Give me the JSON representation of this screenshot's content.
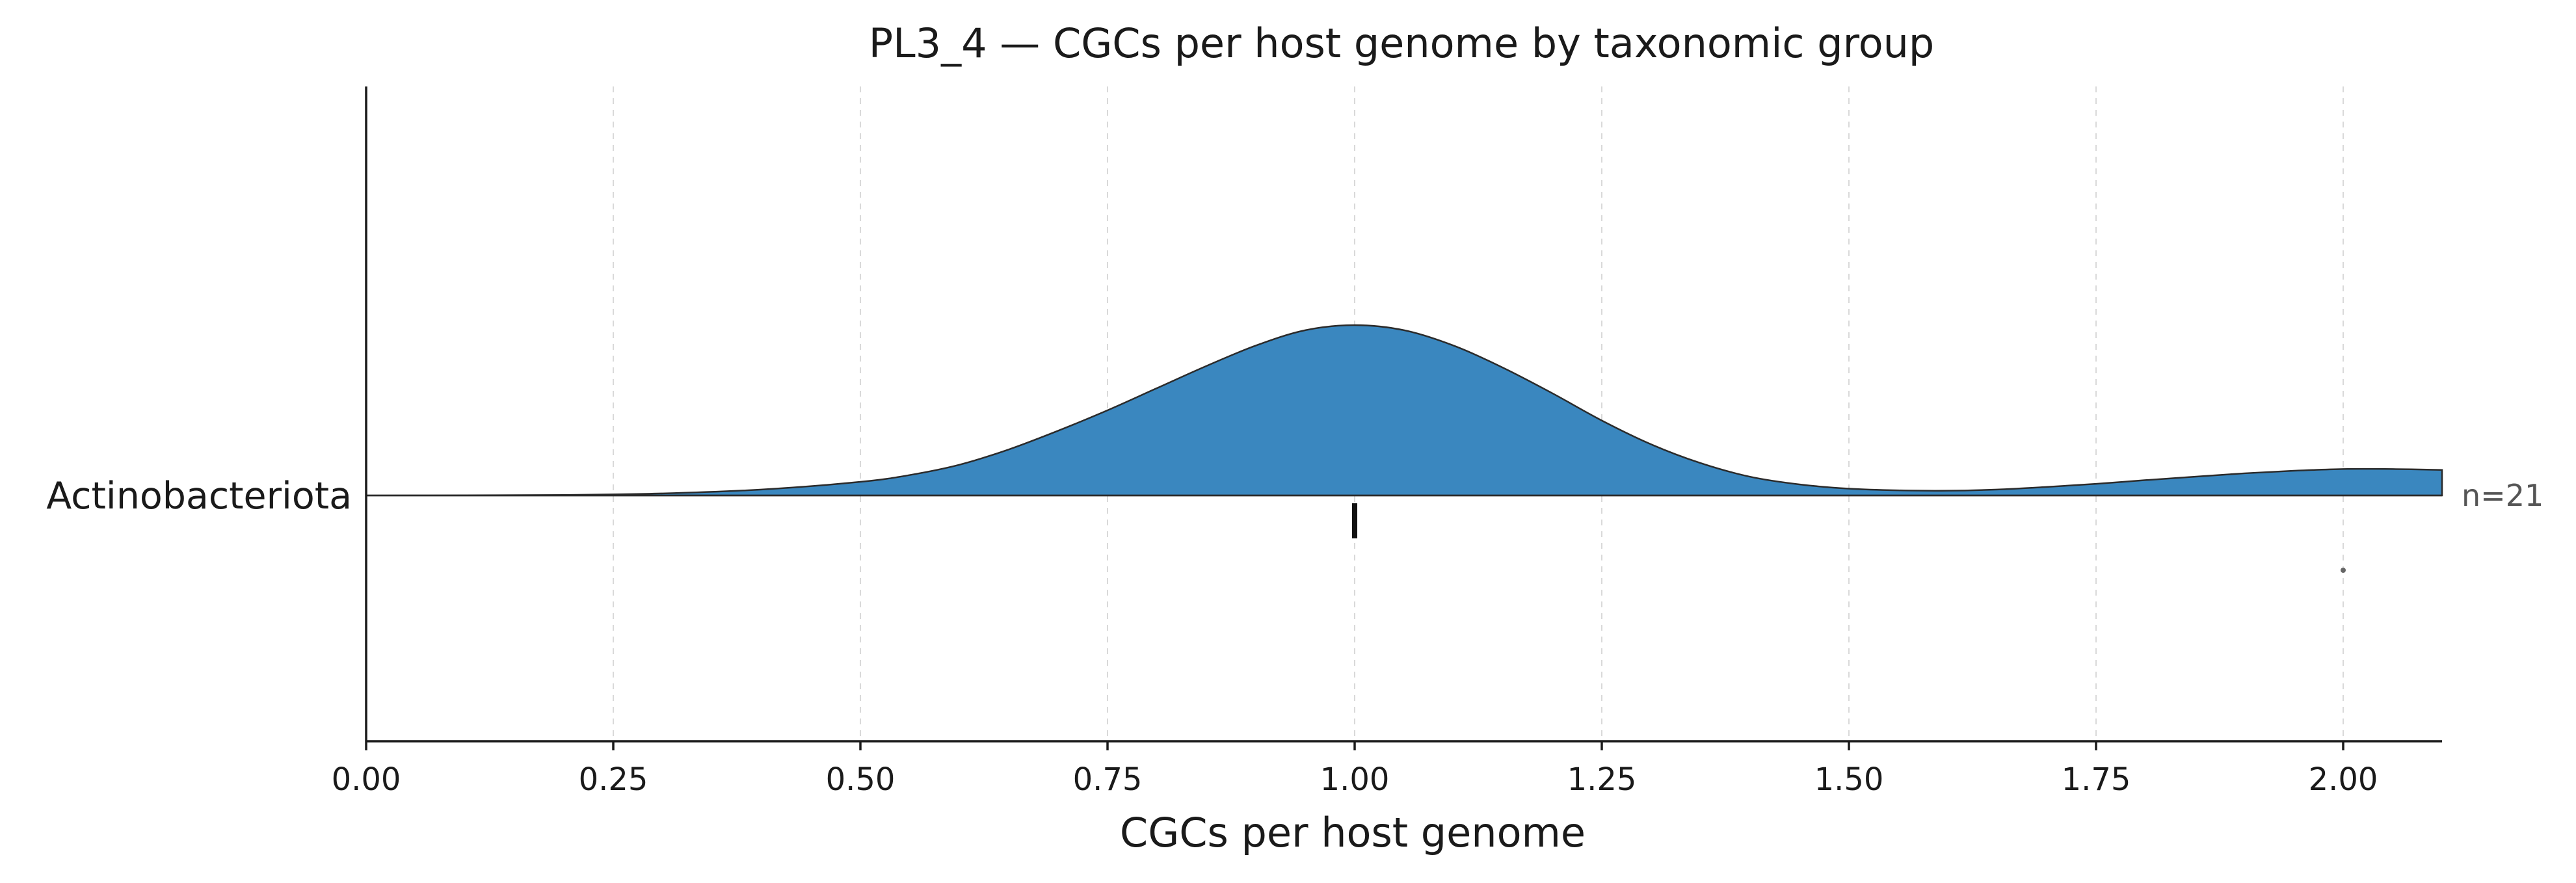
{
  "chart_data": {
    "type": "ridgeline",
    "title": "PL3_4 — CGCs per host genome by taxonomic group",
    "xlabel": "CGCs per host genome",
    "ylabel": "",
    "xlim": [
      0,
      2.1
    ],
    "xticks": [
      0,
      0.25,
      0.5,
      0.75,
      1.0,
      1.25,
      1.5,
      1.75,
      2.0
    ],
    "xtick_labels": [
      "0.00",
      "0.25",
      "0.50",
      "0.75",
      "1.00",
      "1.25",
      "1.50",
      "1.75",
      "2.00"
    ],
    "grid": "vertical dashed",
    "groups": [
      {
        "name": "Actinobacteriota",
        "n_label": "n=21",
        "color": "#3a87bf",
        "density_x": [
          0,
          0.1,
          0.2,
          0.3,
          0.4,
          0.5,
          0.55,
          0.6,
          0.65,
          0.7,
          0.75,
          0.8,
          0.85,
          0.9,
          0.95,
          1.0,
          1.05,
          1.1,
          1.15,
          1.2,
          1.25,
          1.3,
          1.35,
          1.4,
          1.45,
          1.5,
          1.55,
          1.6,
          1.65,
          1.7,
          1.75,
          1.8,
          1.85,
          1.9,
          1.95,
          2.0,
          2.05,
          2.1
        ],
        "density_y": [
          0,
          0.001,
          0.003,
          0.012,
          0.035,
          0.08,
          0.12,
          0.18,
          0.27,
          0.38,
          0.5,
          0.63,
          0.76,
          0.88,
          0.97,
          1.0,
          0.97,
          0.88,
          0.75,
          0.6,
          0.44,
          0.3,
          0.19,
          0.11,
          0.065,
          0.04,
          0.03,
          0.028,
          0.035,
          0.05,
          0.068,
          0.09,
          0.11,
          0.13,
          0.145,
          0.155,
          0.155,
          0.15
        ],
        "median": 1.0,
        "points": [
          2.0
        ]
      }
    ]
  }
}
